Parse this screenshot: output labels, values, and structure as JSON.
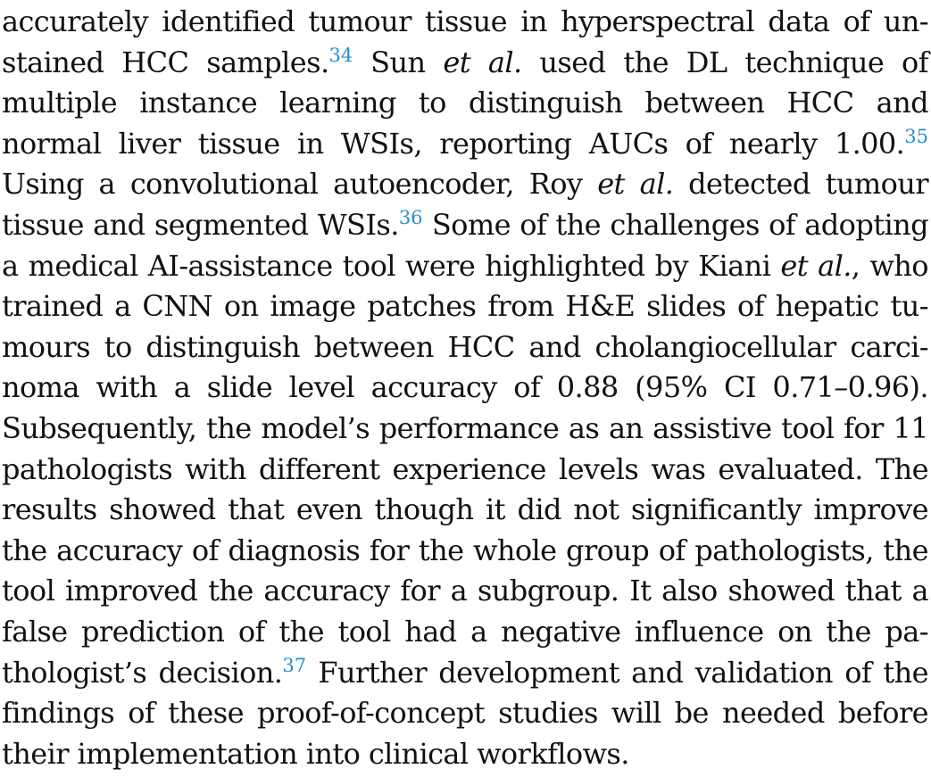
{
  "paragraph": {
    "lines": [
      {
        "segments": [
          {
            "t": "text",
            "v": "accurately identified tumour tissue in hyperspectral data of un-"
          }
        ]
      },
      {
        "segments": [
          {
            "t": "text",
            "v": "stained HCC samples."
          },
          {
            "t": "ref",
            "v": "34"
          },
          {
            "t": "text",
            "v": " Sun "
          },
          {
            "t": "em",
            "v": "et al."
          },
          {
            "t": "text",
            "v": " used the DL technique of"
          }
        ]
      },
      {
        "segments": [
          {
            "t": "text",
            "v": "multiple instance learning to distinguish between HCC and"
          }
        ]
      },
      {
        "segments": [
          {
            "t": "text",
            "v": "normal liver tissue in WSIs, reporting AUCs of nearly 1.00."
          },
          {
            "t": "ref",
            "v": "35"
          }
        ]
      },
      {
        "segments": [
          {
            "t": "text",
            "v": "Using a convolutional autoencoder, Roy "
          },
          {
            "t": "em",
            "v": "et al."
          },
          {
            "t": "text",
            "v": " detected tumour"
          }
        ]
      },
      {
        "segments": [
          {
            "t": "text",
            "v": "tissue and segmented WSIs."
          },
          {
            "t": "ref",
            "v": "36"
          },
          {
            "t": "text",
            "v": " Some of the challenges of adopting"
          }
        ]
      },
      {
        "segments": [
          {
            "t": "text",
            "v": "a medical AI-assistance tool were highlighted by Kiani "
          },
          {
            "t": "em",
            "v": "et al."
          },
          {
            "t": "text",
            "v": ", who"
          }
        ]
      },
      {
        "segments": [
          {
            "t": "text",
            "v": "trained a CNN on image patches from H&E slides of hepatic tu-"
          }
        ]
      },
      {
        "segments": [
          {
            "t": "text",
            "v": "mours to distinguish between HCC and cholangiocellular carci-"
          }
        ]
      },
      {
        "segments": [
          {
            "t": "text",
            "v": "noma with a slide level accuracy of 0.88 (95% CI 0.71–0.96)."
          }
        ]
      },
      {
        "segments": [
          {
            "t": "text",
            "v": "Subsequently, the model’s performance as an assistive tool for 11"
          }
        ]
      },
      {
        "segments": [
          {
            "t": "text",
            "v": "pathologists with different experience levels was evaluated. The"
          }
        ]
      },
      {
        "segments": [
          {
            "t": "text",
            "v": "results showed that even though it did not significantly improve"
          }
        ]
      },
      {
        "segments": [
          {
            "t": "text",
            "v": "the accuracy of diagnosis for the whole group of pathologists, the"
          }
        ]
      },
      {
        "segments": [
          {
            "t": "text",
            "v": "tool improved the accuracy for a subgroup. It also showed that a"
          }
        ]
      },
      {
        "segments": [
          {
            "t": "text",
            "v": "false prediction of the tool had a negative influence on the pa-"
          }
        ]
      },
      {
        "segments": [
          {
            "t": "text",
            "v": "thologist’s decision."
          },
          {
            "t": "ref",
            "v": "37"
          },
          {
            "t": "text",
            "v": " Further development and validation of the"
          }
        ]
      },
      {
        "segments": [
          {
            "t": "text",
            "v": "findings of these proof-of-concept studies will be needed before"
          }
        ]
      },
      {
        "segments": [
          {
            "t": "text",
            "v": "their implementation into clinical workflows."
          }
        ]
      }
    ]
  }
}
